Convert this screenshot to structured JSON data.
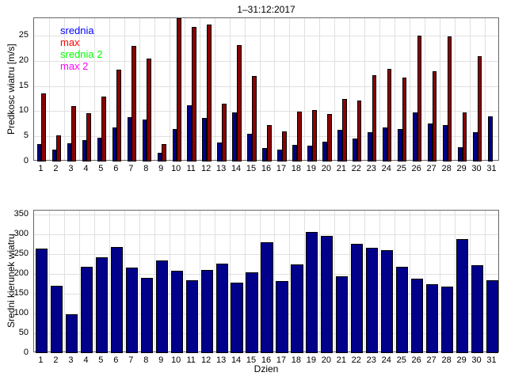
{
  "title": "1–31:12:2017",
  "colors": {
    "bar_blue": "#00008B",
    "bar_dark_red": "#8B0000",
    "bar_edge": "#000000",
    "grid": "#E0E0E0",
    "axis_box": "#666666",
    "legend_srednia": "#0000FF",
    "legend_max": "#FF0000",
    "legend_srednia2": "#00FF00",
    "legend_max2": "#FF00FF"
  },
  "chart_data": [
    {
      "type": "bar",
      "title": "1–31:12:2017",
      "ylabel": "Predkosc wiatru [m/s]",
      "xlabel": "",
      "categories": [
        1,
        2,
        3,
        4,
        5,
        6,
        7,
        8,
        9,
        10,
        11,
        12,
        13,
        14,
        15,
        16,
        17,
        18,
        19,
        20,
        21,
        22,
        23,
        24,
        25,
        26,
        27,
        28,
        29,
        30,
        31
      ],
      "series": [
        {
          "name": "srednia",
          "color": "#00008B",
          "values": [
            3.4,
            2.3,
            3.6,
            4.2,
            4.8,
            6.7,
            8.8,
            8.3,
            1.8,
            6.4,
            11.2,
            8.7,
            3.8,
            9.8,
            5.5,
            2.7,
            2.3,
            3.3,
            3.2,
            4.0,
            6.3,
            4.6,
            5.8,
            6.7,
            6.4,
            9.8,
            7.6,
            7.3,
            2.8,
            5.8,
            8.9
          ]
        },
        {
          "name": "max",
          "color": "#8B0000",
          "values": [
            13.5,
            5.2,
            11.0,
            9.6,
            12.9,
            18.2,
            23.0,
            20.5,
            3.5,
            28.5,
            26.8,
            27.2,
            11.5,
            23.2,
            17.0,
            7.3,
            6.0,
            9.9,
            10.2,
            9.5,
            12.5,
            12.2,
            17.2,
            18.5,
            16.7,
            25.1,
            18.0,
            24.9,
            9.8,
            20.9,
            null
          ]
        }
      ],
      "legend": [
        {
          "label": "srednia",
          "color": "#0000FF"
        },
        {
          "label": "max",
          "color": "#FF0000"
        },
        {
          "label": "srednia 2",
          "color": "#00FF00"
        },
        {
          "label": "max 2",
          "color": "#FF00FF"
        }
      ],
      "legend_position": "top-left",
      "ylim": [
        0,
        28.5
      ],
      "yticks": [
        0,
        5,
        10,
        15,
        20,
        25
      ],
      "grid": true
    },
    {
      "type": "bar",
      "ylabel": "Sredni kierunek wiatru",
      "xlabel": "Dzien",
      "categories": [
        1,
        2,
        3,
        4,
        5,
        6,
        7,
        8,
        9,
        10,
        11,
        12,
        13,
        14,
        15,
        16,
        17,
        18,
        19,
        20,
        21,
        22,
        23,
        24,
        25,
        26,
        27,
        28,
        29,
        30,
        31
      ],
      "series": [
        {
          "name": "sredni kierunek",
          "color": "#00008B",
          "values": [
            264,
            171,
            99,
            218,
            243,
            268,
            216,
            191,
            234,
            208,
            184,
            210,
            227,
            178,
            204,
            281,
            183,
            224,
            306,
            296,
            194,
            277,
            266,
            260,
            219,
            188,
            174,
            169,
            288,
            223,
            185
          ]
        }
      ],
      "ylim": [
        0,
        360
      ],
      "yticks": [
        0,
        50,
        100,
        150,
        200,
        250,
        300,
        350
      ],
      "grid": true
    }
  ]
}
